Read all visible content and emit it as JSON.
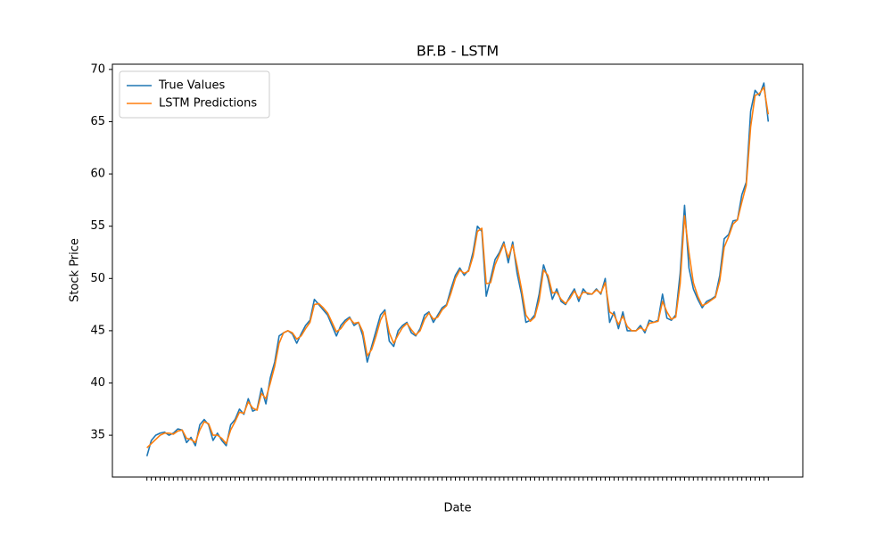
{
  "chart_data": {
    "type": "line",
    "title": "BF.B - LSTM",
    "xlabel": "Date",
    "ylabel": "Stock Price",
    "categories": [
      null,
      null,
      null,
      null,
      null,
      null,
      null,
      null,
      null,
      null,
      null,
      null,
      null,
      null,
      null,
      null,
      null,
      null,
      null,
      null,
      null,
      null,
      null,
      null,
      null,
      null,
      null,
      null,
      null,
      null,
      null,
      null,
      null,
      null,
      null,
      null,
      null,
      null,
      null,
      null,
      null,
      null,
      null,
      null,
      null,
      null,
      null,
      null,
      null,
      null,
      null,
      null,
      null,
      null,
      null,
      null,
      null,
      null,
      null,
      null,
      null,
      null,
      null,
      null,
      null,
      null,
      null,
      null,
      null,
      null,
      null,
      null,
      null,
      null,
      null,
      null,
      null,
      null,
      null,
      null,
      null,
      null,
      null,
      null,
      null,
      null,
      null,
      null,
      null,
      null,
      null,
      null,
      null,
      null,
      null,
      null,
      null,
      null,
      null,
      null,
      null,
      null,
      null,
      null,
      null,
      null,
      null,
      null,
      null,
      null,
      null,
      null,
      null,
      null,
      null,
      null,
      null,
      null,
      null,
      null,
      null,
      null,
      null,
      null,
      null,
      null,
      null,
      null,
      null,
      null,
      null,
      null,
      null,
      null,
      null,
      null,
      null,
      null,
      null,
      null,
      null,
      null
    ],
    "series": [
      {
        "name": "True Values",
        "color": "#1f77b4",
        "values": [
          33.0,
          34.5,
          35.0,
          35.2,
          35.3,
          35.0,
          35.2,
          35.6,
          35.5,
          34.3,
          34.8,
          34.0,
          36.0,
          36.5,
          36.0,
          34.5,
          35.2,
          34.5,
          34.0,
          36.0,
          36.5,
          37.5,
          37.0,
          38.5,
          37.3,
          37.5,
          39.5,
          38.0,
          40.5,
          42.0,
          44.5,
          44.8,
          45.0,
          44.7,
          43.8,
          44.7,
          45.5,
          46.0,
          48.0,
          47.5,
          47.0,
          46.5,
          45.5,
          44.5,
          45.5,
          46.0,
          46.3,
          45.5,
          45.8,
          44.5,
          42.0,
          43.5,
          45.0,
          46.5,
          47.0,
          44.0,
          43.5,
          45.0,
          45.5,
          45.8,
          44.8,
          44.5,
          45.2,
          46.5,
          46.8,
          45.8,
          46.5,
          47.2,
          47.5,
          49.0,
          50.3,
          51.0,
          50.3,
          50.8,
          52.5,
          55.0,
          54.5,
          48.3,
          50.0,
          51.8,
          52.5,
          53.5,
          51.5,
          53.5,
          50.5,
          48.5,
          45.8,
          46.0,
          46.5,
          48.5,
          51.3,
          50.0,
          48.0,
          49.0,
          47.8,
          47.5,
          48.3,
          49.0,
          47.8,
          49.0,
          48.5,
          48.5,
          49.0,
          48.5,
          50.0,
          45.8,
          46.8,
          45.2,
          46.8,
          45.0,
          45.0,
          45.0,
          45.5,
          44.8,
          46.0,
          45.8,
          46.0,
          48.5,
          46.2,
          46.0,
          46.5,
          50.5,
          57.0,
          51.0,
          49.0,
          48.0,
          47.2,
          47.8,
          48.0,
          48.3,
          50.3,
          53.8,
          54.2,
          55.5,
          55.6,
          58.0,
          59.2,
          66.0,
          68.0,
          67.5,
          68.7,
          65.0
        ]
      },
      {
        "name": "LSTM Predictions",
        "color": "#ff7f0e",
        "values": [
          33.8,
          34.2,
          34.6,
          35.0,
          35.2,
          35.2,
          35.1,
          35.4,
          35.5,
          34.7,
          34.6,
          34.3,
          35.5,
          36.3,
          36.1,
          35.0,
          35.0,
          34.7,
          34.2,
          35.5,
          36.3,
          37.2,
          37.1,
          38.2,
          37.6,
          37.4,
          39.0,
          38.5,
          40.0,
          41.6,
          43.8,
          44.8,
          45.0,
          44.8,
          44.2,
          44.5,
          45.2,
          45.8,
          47.5,
          47.6,
          47.2,
          46.7,
          45.8,
          44.9,
          45.2,
          45.8,
          46.2,
          45.7,
          45.8,
          44.9,
          42.6,
          43.2,
          44.5,
          46.0,
          46.8,
          44.8,
          43.8,
          44.6,
          45.3,
          45.7,
          45.1,
          44.6,
          45.0,
          46.1,
          46.7,
          46.1,
          46.3,
          47.0,
          47.4,
          48.6,
          50.0,
          50.8,
          50.5,
          50.7,
          52.1,
          54.5,
          54.8,
          49.5,
          49.6,
          51.3,
          52.3,
          53.3,
          52.0,
          53.2,
          51.2,
          49.0,
          46.5,
          45.9,
          46.3,
          47.9,
          50.8,
          50.3,
          48.6,
          48.7,
          48.0,
          47.6,
          48.1,
          48.8,
          48.1,
          48.7,
          48.6,
          48.5,
          48.9,
          48.6,
          49.6,
          46.8,
          46.5,
          45.6,
          46.4,
          45.4,
          45.0,
          45.0,
          45.3,
          45.0,
          45.7,
          45.8,
          45.9,
          47.8,
          46.8,
          46.1,
          46.3,
          49.5,
          56.0,
          52.5,
          49.6,
          48.3,
          47.4,
          47.6,
          47.9,
          48.2,
          49.8,
          53.0,
          54.0,
          55.2,
          55.6,
          57.3,
          58.9,
          64.5,
          67.5,
          67.7,
          68.3,
          65.7
        ]
      }
    ],
    "ylim": [
      31,
      70.5
    ],
    "yticks": [
      35,
      40,
      45,
      50,
      55,
      60,
      65,
      70
    ],
    "legend": "upper left"
  }
}
